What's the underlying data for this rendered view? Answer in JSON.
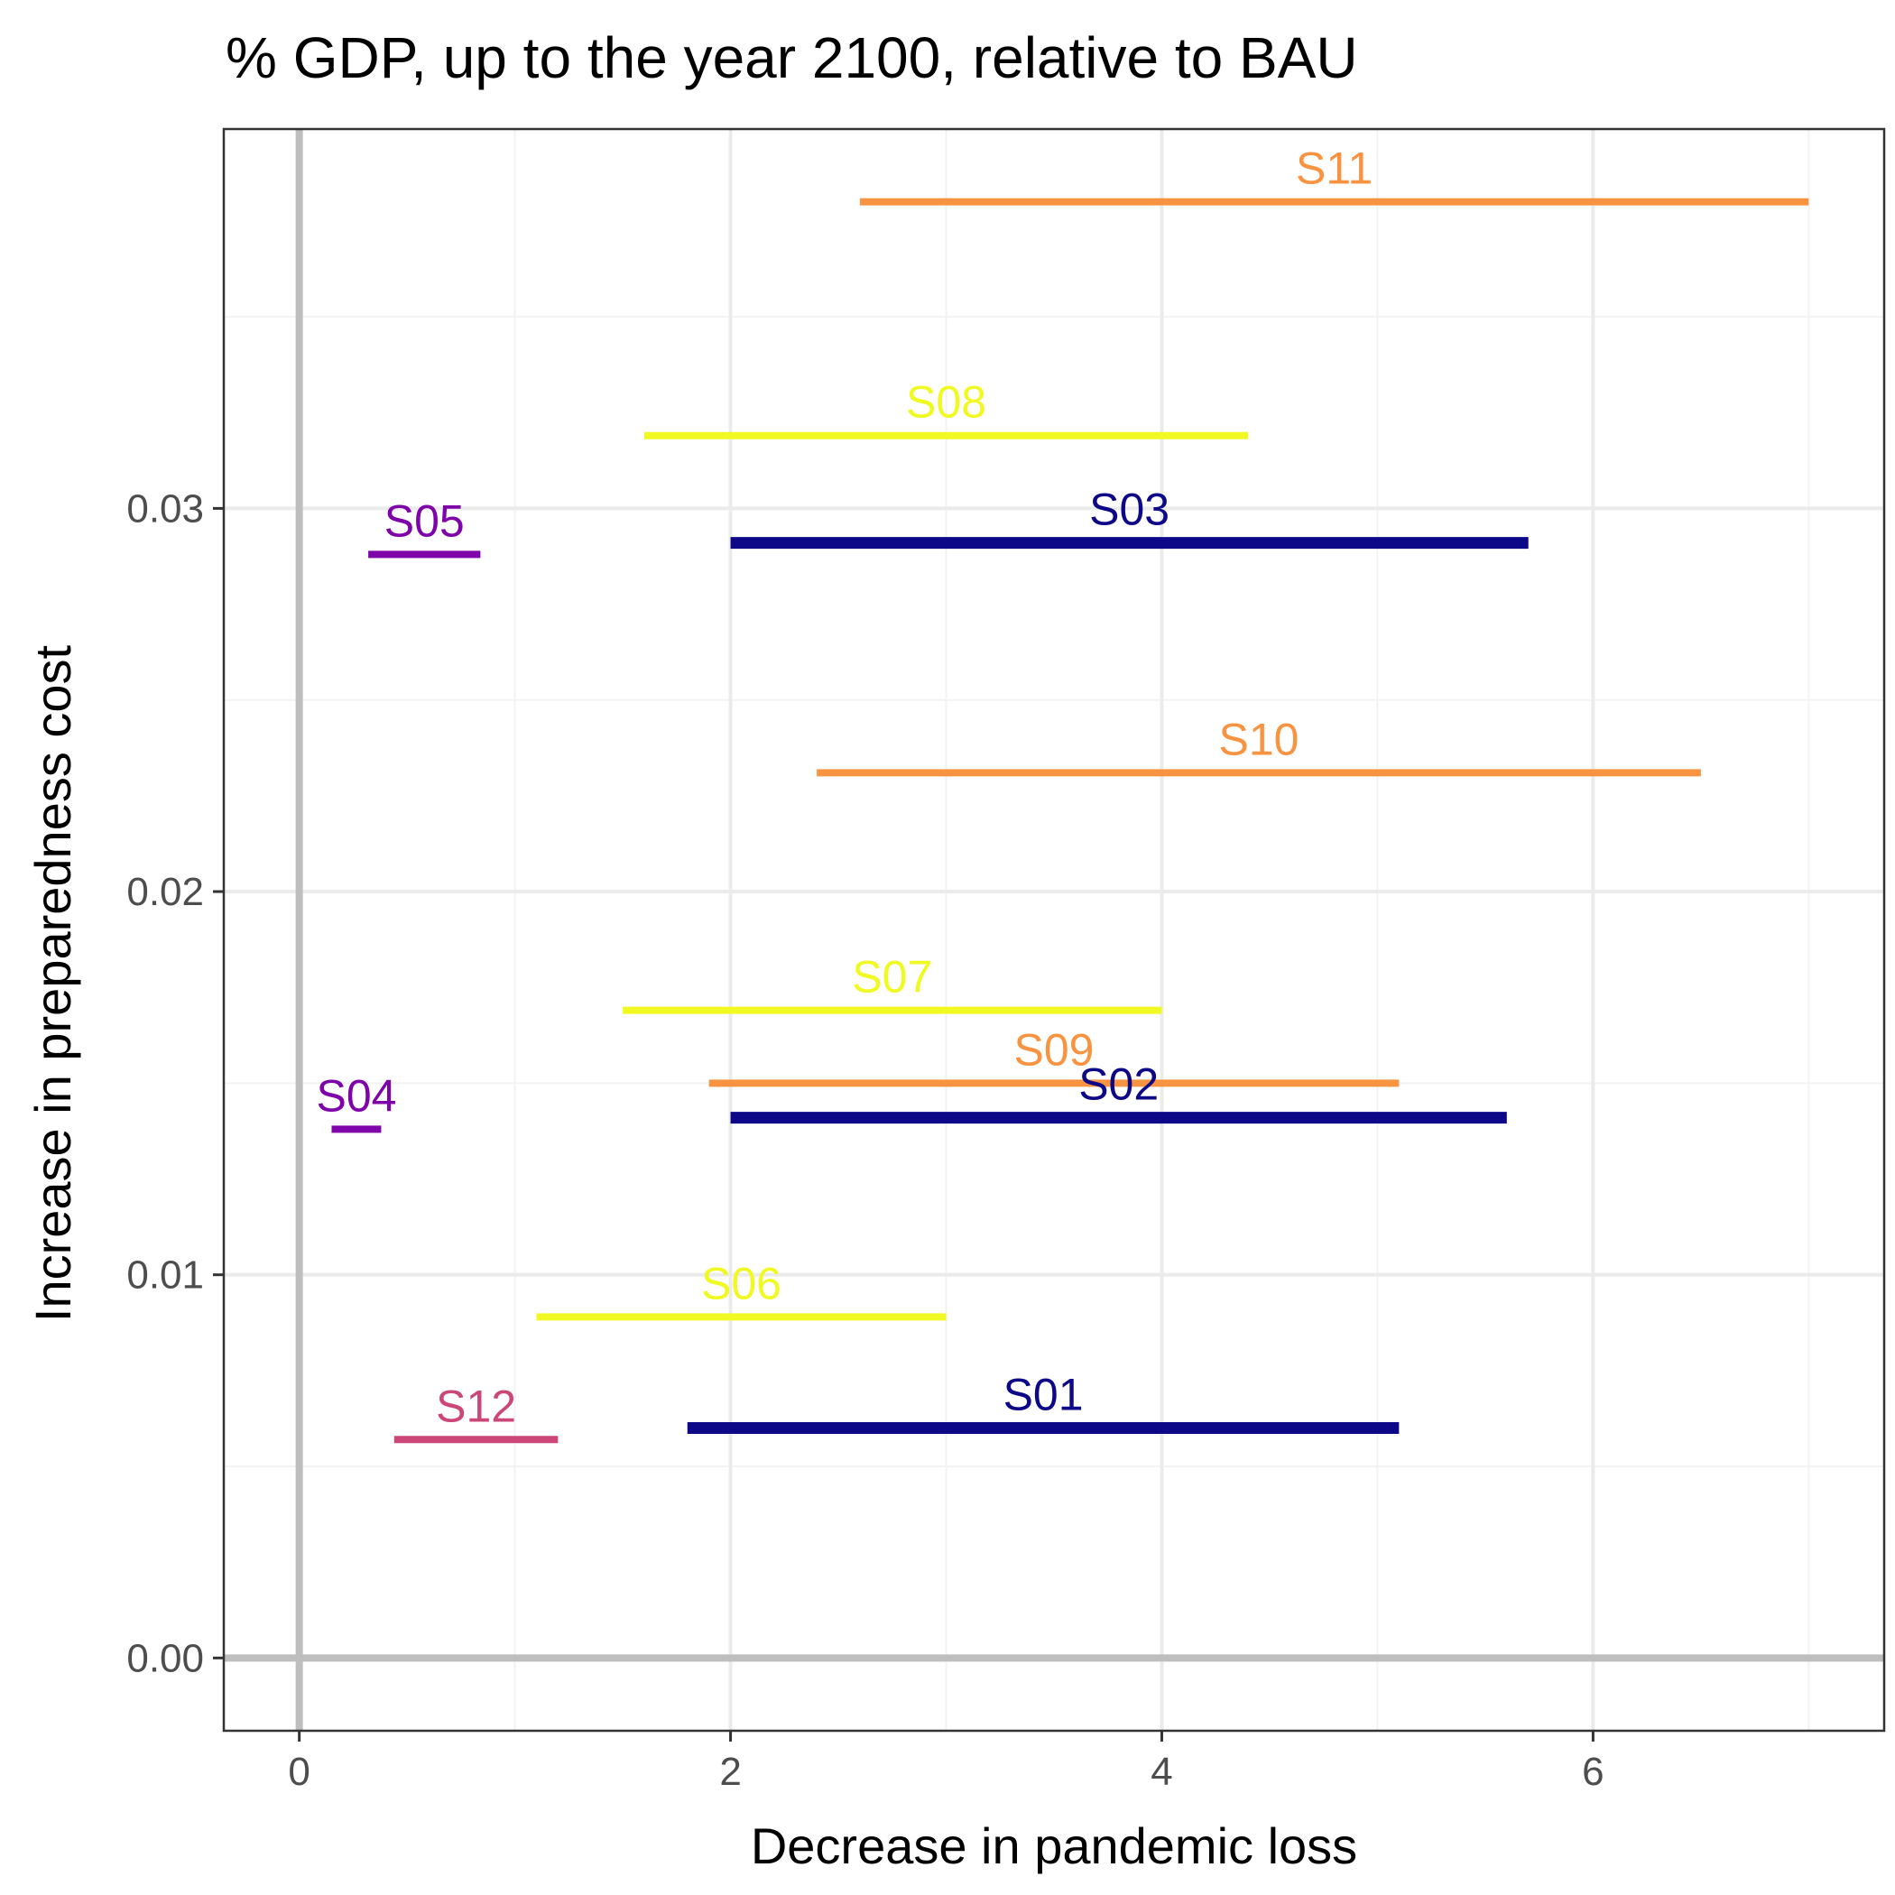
{
  "chart_data": {
    "type": "range-segments",
    "title": "% GDP, up to the year 2100, relative to BAU",
    "xlabel": "Decrease in pandemic loss",
    "ylabel": "Increase in preparedness cost",
    "xlim": [
      -0.35,
      7.35
    ],
    "ylim": [
      -0.0019,
      0.0399
    ],
    "x_ticks": [
      0,
      2,
      4,
      6
    ],
    "x_tick_labels": [
      "0",
      "2",
      "4",
      "6"
    ],
    "y_ticks": [
      0,
      0.01,
      0.02,
      0.03
    ],
    "y_tick_labels": [
      "0.00",
      "0.01",
      "0.02",
      "0.03"
    ],
    "grid": true,
    "segments": [
      {
        "label": "S01",
        "x_start": 1.8,
        "x_end": 5.1,
        "y": 0.006,
        "color": "#0d0887"
      },
      {
        "label": "S02",
        "x_start": 2.0,
        "x_end": 5.6,
        "y": 0.0141,
        "color": "#0d0887"
      },
      {
        "label": "S03",
        "x_start": 2.0,
        "x_end": 5.7,
        "y": 0.0291,
        "color": "#0d0887"
      },
      {
        "label": "S04",
        "x_start": 0.15,
        "x_end": 0.38,
        "y": 0.0138,
        "color": "#7e03a8"
      },
      {
        "label": "S05",
        "x_start": 0.32,
        "x_end": 0.84,
        "y": 0.0288,
        "color": "#7e03a8"
      },
      {
        "label": "S06",
        "x_start": 1.1,
        "x_end": 3.0,
        "y": 0.0089,
        "color": "#f0f921"
      },
      {
        "label": "S07",
        "x_start": 1.5,
        "x_end": 4.0,
        "y": 0.0169,
        "color": "#f0f921"
      },
      {
        "label": "S08",
        "x_start": 1.6,
        "x_end": 4.4,
        "y": 0.0319,
        "color": "#f0f921"
      },
      {
        "label": "S09",
        "x_start": 1.9,
        "x_end": 5.1,
        "y": 0.015,
        "color": "#f89441"
      },
      {
        "label": "S10",
        "x_start": 2.4,
        "x_end": 6.5,
        "y": 0.0231,
        "color": "#f89441"
      },
      {
        "label": "S11",
        "x_start": 2.6,
        "x_end": 7.0,
        "y": 0.038,
        "color": "#f89441"
      },
      {
        "label": "S12",
        "x_start": 0.44,
        "x_end": 1.2,
        "y": 0.0057,
        "color": "#cc4778"
      }
    ]
  },
  "colors": {
    "panel_border": "#333333",
    "grid_major": "#ebebeb",
    "grid_minor": "#f3f3f3",
    "zero_lines": "#bebebe"
  }
}
